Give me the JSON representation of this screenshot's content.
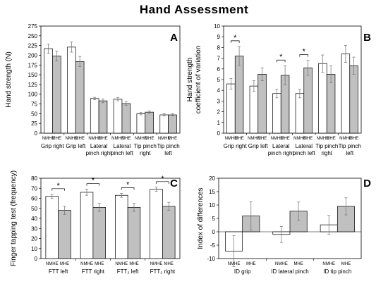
{
  "figure": {
    "title": "Hand Assessment"
  },
  "colors": {
    "nmhe_fill": "#ffffff",
    "mhe_fill": "#c0c0c0",
    "stroke": "#000000",
    "error": "#707070"
  },
  "chart_data": [
    {
      "panel": "A",
      "type": "bar",
      "ylabel": "Hand strength (N)",
      "ylim": [
        0,
        275
      ],
      "yticks": [
        0,
        25,
        50,
        75,
        100,
        125,
        150,
        175,
        200,
        225,
        250,
        275
      ],
      "categories": [
        "Grip right",
        "Grip left",
        "Lateral pinch right",
        "Lateral pinch left",
        "Tip pinch right",
        "Tip pinch left"
      ],
      "category_lines": [
        [
          "Grip right"
        ],
        [
          "Grip left"
        ],
        [
          "Lateral",
          "pinch right"
        ],
        [
          "Lateral",
          "pinch left"
        ],
        [
          "Tip pinch",
          "right"
        ],
        [
          "Tip pinch",
          "left"
        ]
      ],
      "group_labels": [
        "NMHE",
        "MHE"
      ],
      "series": [
        {
          "name": "NMHE",
          "values": [
            217,
            221,
            89,
            87,
            50,
            47
          ],
          "errors": [
            12,
            13,
            3,
            4,
            3,
            3
          ]
        },
        {
          "name": "MHE",
          "values": [
            198,
            184,
            83,
            76,
            54,
            47
          ],
          "errors": [
            13,
            13,
            5,
            5,
            3,
            3
          ]
        }
      ],
      "significant": [
        false,
        false,
        false,
        false,
        false,
        false
      ]
    },
    {
      "panel": "B",
      "type": "bar",
      "ylabel": "Hand strength coefficient of variation",
      "ylabel_lines": [
        "Hand strength",
        "coefficient of variation"
      ],
      "ylim": [
        0,
        10
      ],
      "yticks": [
        0,
        1,
        2,
        3,
        4,
        5,
        6,
        7,
        8,
        9,
        10
      ],
      "categories": [
        "Grip right",
        "Grip left",
        "Lateral pinch right",
        "Lateral pinch left",
        "Tip pinch right",
        "Tip pinch left"
      ],
      "category_lines": [
        [
          "Grip right"
        ],
        [
          "Grip left"
        ],
        [
          "Lateral",
          "pinch right"
        ],
        [
          "Lateral",
          "pinch left"
        ],
        [
          "Tip pinch",
          "right"
        ],
        [
          "Tip pinch",
          "left"
        ]
      ],
      "group_labels": [
        "NMHE",
        "MHE"
      ],
      "series": [
        {
          "name": "NMHE",
          "values": [
            4.6,
            4.4,
            3.7,
            3.7,
            6.5,
            7.4
          ],
          "errors": [
            0.5,
            0.5,
            0.4,
            0.4,
            0.8,
            0.8
          ]
        },
        {
          "name": "MHE",
          "values": [
            7.2,
            5.5,
            5.4,
            6.1,
            5.5,
            6.3
          ],
          "errors": [
            0.9,
            0.6,
            0.9,
            0.7,
            0.8,
            0.8
          ]
        }
      ],
      "significant": [
        true,
        false,
        true,
        true,
        false,
        false
      ],
      "sig_marker": "*"
    },
    {
      "panel": "C",
      "type": "bar",
      "ylabel": "Finger tapping test (frequency)",
      "ylim": [
        0,
        80
      ],
      "yticks": [
        0,
        10,
        20,
        30,
        40,
        50,
        60,
        70,
        80
      ],
      "categories": [
        "FTT left",
        "FTT right",
        "FTT2 left",
        "FTT2 right"
      ],
      "category_lines": [
        [
          "FTT left"
        ],
        [
          "FTT right"
        ],
        [
          "FTT₂ left"
        ],
        [
          "FTT₂ right"
        ]
      ],
      "group_labels": [
        "NMHE",
        "MHE"
      ],
      "series": [
        {
          "name": "NMHE",
          "values": [
            62,
            66,
            63,
            69
          ],
          "errors": [
            2,
            3,
            2,
            2
          ]
        },
        {
          "name": "MHE",
          "values": [
            48,
            51,
            51,
            52
          ],
          "errors": [
            4,
            4,
            4,
            4
          ]
        }
      ],
      "significant": [
        true,
        true,
        true,
        true
      ],
      "sig_marker": "*"
    },
    {
      "panel": "D",
      "type": "bar",
      "ylabel": "Index of differences",
      "ylim": [
        -10,
        20
      ],
      "yticks": [
        -10,
        -5,
        0,
        5,
        10,
        15,
        20
      ],
      "categories": [
        "ID grip",
        "ID lateral pinch",
        "ID tip pinch"
      ],
      "category_lines": [
        [
          "ID grip"
        ],
        [
          "ID lateral pinch"
        ],
        [
          "ID tip pinch"
        ]
      ],
      "group_labels": [
        "NMHE",
        "MHE"
      ],
      "series": [
        {
          "name": "NMHE",
          "values": [
            -7.2,
            -1.0,
            2.6
          ],
          "errors": [
            5.8,
            3.0,
            3.5
          ]
        },
        {
          "name": "MHE",
          "values": [
            5.9,
            7.7,
            9.5
          ],
          "errors": [
            5.3,
            3.4,
            3.2
          ]
        }
      ],
      "significant": [
        false,
        false,
        false
      ]
    }
  ]
}
